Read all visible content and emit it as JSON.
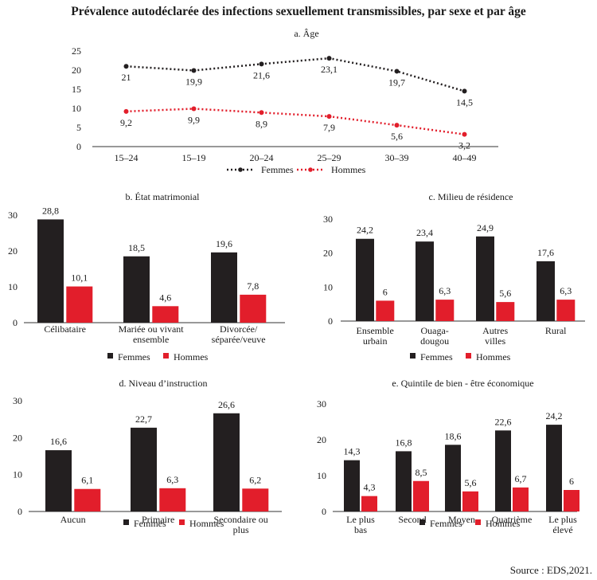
{
  "title": "Prévalence autodéclarée des infections sexuellement transmissibles, par sexe et par âge",
  "source": "Source : EDS,2021.",
  "colors": {
    "femmes": "#231f20",
    "hommes": "#e21e2b",
    "axis": "#333333"
  },
  "chart_data": [
    {
      "id": "a",
      "type": "line",
      "title": "a. Âge",
      "categories": [
        "15–24",
        "15–19",
        "20–24",
        "25–29",
        "30–39",
        "40–49"
      ],
      "series": [
        {
          "name": "Femmes",
          "values": [
            21,
            19.9,
            21.6,
            23.1,
            19.7,
            14.5
          ],
          "labels": [
            "21",
            "19,9",
            "21,6",
            "23,1",
            "19,7",
            "14,5"
          ]
        },
        {
          "name": "Hommes",
          "values": [
            9.2,
            9.9,
            8.9,
            7.9,
            5.6,
            3.2
          ],
          "labels": [
            "9,2",
            "9,9",
            "8,9",
            "7,9",
            "5,6",
            "3,2"
          ]
        }
      ],
      "ylim": [
        0,
        25
      ],
      "yticks": [
        "0",
        "5",
        "10",
        "15",
        "20",
        "25"
      ],
      "grid": false,
      "legend": "bottom"
    },
    {
      "id": "b",
      "type": "bar",
      "title": "b. État matrimonial",
      "categories": [
        "Célibataire",
        "Mariée ou vivant\nensemble",
        "Divorcée/\nséparée/veuve"
      ],
      "series": [
        {
          "name": "Femmes",
          "values": [
            28.8,
            18.5,
            19.6
          ],
          "labels": [
            "28,8",
            "18,5",
            "19,6"
          ]
        },
        {
          "name": "Hommes",
          "values": [
            10.1,
            4.6,
            7.8
          ],
          "labels": [
            "10,1",
            "4,6",
            "7,8"
          ]
        }
      ],
      "ylim": [
        0,
        30
      ],
      "yticks": [
        "0",
        "10",
        "20",
        "30"
      ],
      "grid": false,
      "legend": "bottom"
    },
    {
      "id": "c",
      "type": "bar",
      "title": "c. Milieu de résidence",
      "categories": [
        "Ensemble\nurbain",
        "Ouaga-\ndougou",
        "Autres\nvilles",
        "Rural"
      ],
      "series": [
        {
          "name": "Femmes",
          "values": [
            24.2,
            23.4,
            24.9,
            17.6
          ],
          "labels": [
            "24,2",
            "23,4",
            "24,9",
            "17,6"
          ]
        },
        {
          "name": "Hommes",
          "values": [
            6,
            6.3,
            5.6,
            6.3
          ],
          "labels": [
            "6",
            "6,3",
            "5,6",
            "6,3"
          ]
        }
      ],
      "ylim": [
        0,
        30
      ],
      "yticks": [
        "0",
        "10",
        "20",
        "30"
      ],
      "grid": false,
      "legend": "bottom"
    },
    {
      "id": "d",
      "type": "bar",
      "title": "d. Niveau d’instruction",
      "categories": [
        "Aucun",
        "Primaire",
        "Secondaire ou\nplus"
      ],
      "series": [
        {
          "name": "Femmes",
          "values": [
            16.6,
            22.7,
            26.6
          ],
          "labels": [
            "16,6",
            "22,7",
            "26,6"
          ]
        },
        {
          "name": "Hommes",
          "values": [
            6.1,
            6.3,
            6.2
          ],
          "labels": [
            "6,1",
            "6,3",
            "6,2"
          ]
        }
      ],
      "ylim": [
        0,
        30
      ],
      "yticks": [
        "0",
        "10",
        "20",
        "30"
      ],
      "grid": false,
      "legend": "bottom"
    },
    {
      "id": "e",
      "type": "bar",
      "title": "e. Quintile de bien - être économique",
      "categories": [
        "Le plus\nbas",
        "Second",
        "Moyen",
        "Quatrième",
        "Le plus\nélevé"
      ],
      "series": [
        {
          "name": "Femmes",
          "values": [
            14.3,
            16.8,
            18.6,
            22.6,
            24.2
          ],
          "labels": [
            "14,3",
            "16,8",
            "18,6",
            "22,6",
            "24,2"
          ]
        },
        {
          "name": "Hommes",
          "values": [
            4.3,
            8.5,
            5.6,
            6.7,
            6
          ],
          "labels": [
            "4,3",
            "8,5",
            "5,6",
            "6,7",
            "6"
          ]
        }
      ],
      "ylim": [
        0,
        30
      ],
      "yticks": [
        "0",
        "10",
        "20",
        "30"
      ],
      "grid": false,
      "legend": "bottom"
    }
  ]
}
